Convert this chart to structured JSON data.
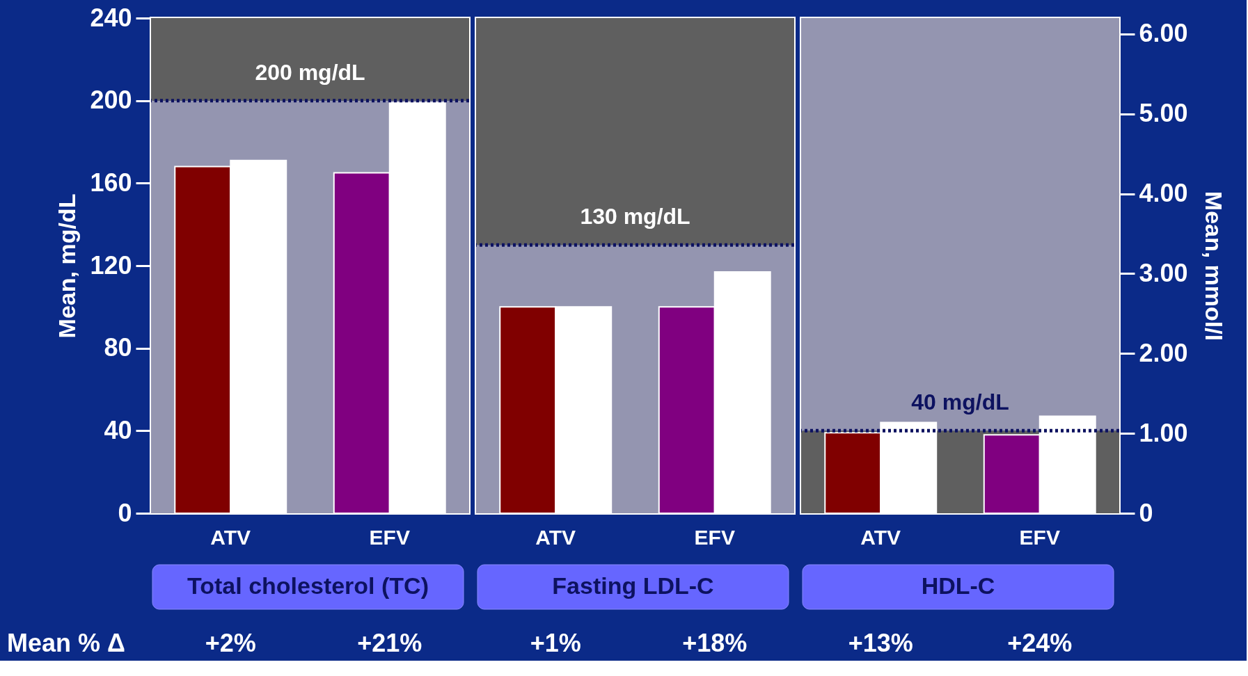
{
  "chart_data": [
    {
      "type": "bar",
      "xlabel": "Total cholesterol (TC)",
      "ylabel": "Mean, mg/dL",
      "categories": [
        "ATV",
        "EFV"
      ],
      "series": [
        {
          "colors": [
            "#800000",
            "#800080"
          ],
          "values": [
            168,
            165
          ]
        },
        {
          "color": "#ffffff",
          "values": [
            171,
            199
          ]
        }
      ],
      "ylim": [
        0,
        240
      ],
      "yticks": [
        0,
        40,
        80,
        120,
        160,
        200,
        240
      ],
      "ref_lines": [
        {
          "axis": "y",
          "value": 200,
          "label": "200 mg/dL",
          "color": "#0d1260",
          "line_style": "dotted"
        }
      ],
      "bands": [
        {
          "axis": "y",
          "from": 0,
          "to": 200,
          "color": "#9495b0"
        },
        {
          "axis": "y",
          "from": 200,
          "to": 240,
          "color": "#5f5f5f"
        }
      ],
      "annotations": [
        "Mean % Δ",
        "+2%",
        "+21%"
      ]
    },
    {
      "type": "bar",
      "xlabel": "Fasting LDL-C",
      "categories": [
        "ATV",
        "EFV"
      ],
      "series": [
        {
          "colors": [
            "#800000",
            "#800080"
          ],
          "values": [
            100,
            100
          ]
        },
        {
          "color": "#ffffff",
          "values": [
            100,
            117
          ]
        }
      ],
      "ylim": [
        0,
        240
      ],
      "tick_labels": "x",
      "ref_lines": [
        {
          "axis": "y",
          "value": 130,
          "label": "130 mg/dL",
          "color": "#0d1260",
          "line_style": "dotted"
        }
      ],
      "bands": [
        {
          "axis": "y",
          "from": 0,
          "to": 130,
          "color": "#9495b0"
        },
        {
          "axis": "y",
          "from": 130,
          "to": 240,
          "color": "#5f5f5f"
        }
      ],
      "annotations": [
        "+1%",
        "+18%"
      ]
    },
    {
      "type": "bar",
      "xlabel": "HDL-C",
      "y2label": "Mean, mmol/l",
      "categories": [
        "ATV",
        "EFV"
      ],
      "series": [
        {
          "colors": [
            "#800000",
            "#800080"
          ],
          "values": [
            39,
            38
          ]
        },
        {
          "color": "#ffffff",
          "values": [
            44,
            47
          ]
        }
      ],
      "ylim": [
        0,
        240
      ],
      "y2lim": [
        0,
        6.2
      ],
      "y2ticks": [
        0,
        {
          "value": 1,
          "label": "1.00"
        },
        {
          "value": 2,
          "label": "2.00"
        },
        {
          "value": 3,
          "label": "3.00"
        },
        {
          "value": 4,
          "label": "4.00"
        },
        {
          "value": 5,
          "label": "5.00"
        },
        {
          "value": 6,
          "label": "6.00"
        }
      ],
      "ref_lines": [
        {
          "axis": "y",
          "value": 40,
          "label": "40 mg/dL",
          "color": "#0d1260",
          "line_style": "dotted"
        }
      ],
      "bands": [
        {
          "axis": "y",
          "from": 0,
          "to": 40,
          "color": "#5f5f5f"
        },
        {
          "axis": "y",
          "from": 40,
          "to": 240,
          "color": "#9495b0"
        }
      ],
      "annotations": [
        "+13%",
        "+24%"
      ]
    }
  ]
}
